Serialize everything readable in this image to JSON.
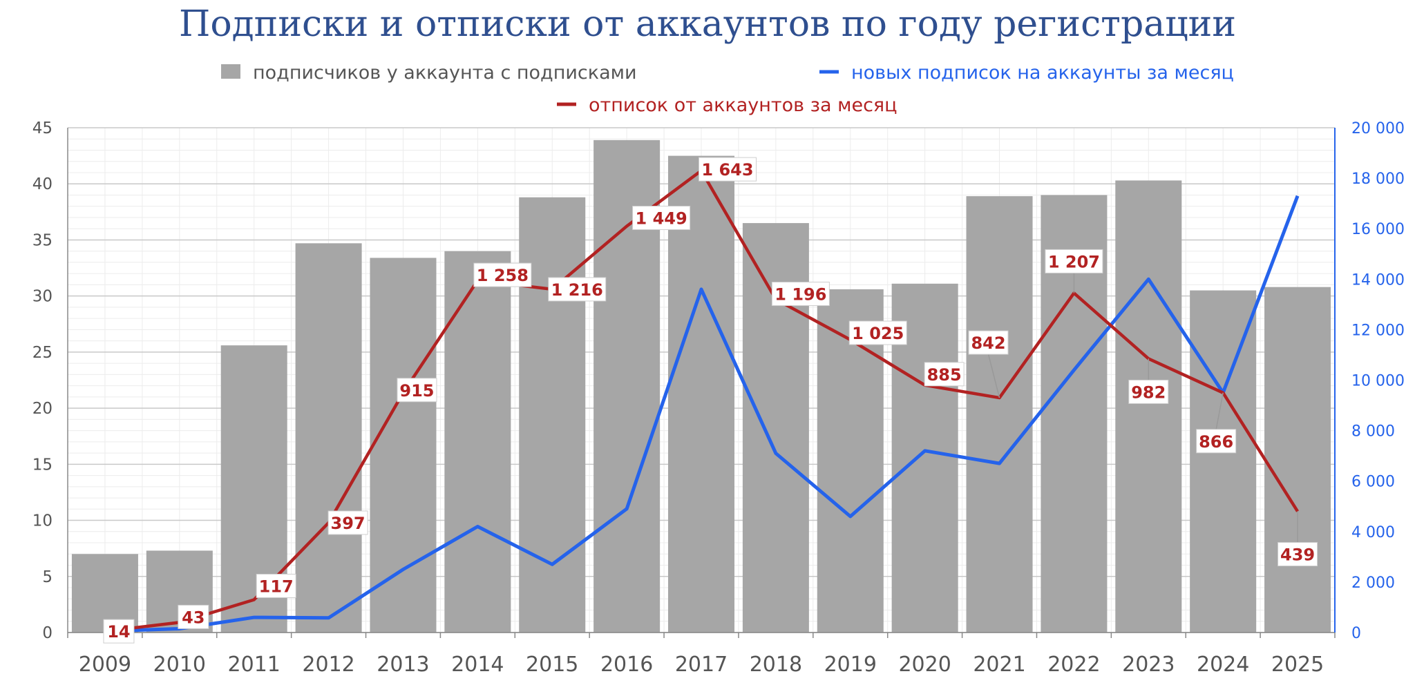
{
  "chart_data": {
    "type": "bar",
    "title": "Подписки и отписки от аккаунтов по году регистрации",
    "categories": [
      "2009",
      "2010",
      "2011",
      "2012",
      "2013",
      "2014",
      "2015",
      "2016",
      "2017",
      "2018",
      "2019",
      "2020",
      "2021",
      "2022",
      "2023",
      "2024",
      "2025"
    ],
    "series": [
      {
        "name": "подписчиков у аккаунта с подписками",
        "type": "bar",
        "axis": "left",
        "color": "#a6a6a6",
        "values": [
          7.0,
          7.3,
          25.6,
          34.7,
          33.4,
          34.0,
          38.8,
          43.9,
          42.5,
          36.5,
          30.6,
          31.1,
          38.9,
          39.0,
          40.3,
          30.5,
          30.8
        ]
      },
      {
        "name": "новых подписок на аккаунты за месяц",
        "type": "line",
        "axis": "right",
        "color": "#2563eb",
        "values": [
          50,
          150,
          600,
          580,
          2500,
          4200,
          2700,
          4900,
          13600,
          7100,
          4600,
          7200,
          6700,
          10400,
          14000,
          9500,
          17300
        ]
      },
      {
        "name": "отписок от аккаунтов за месяц",
        "type": "line",
        "axis": "right",
        "color": "#b22222",
        "values": [
          14,
          43,
          117,
          397,
          915,
          1258,
          1216,
          1449,
          1643,
          1196,
          1025,
          885,
          842,
          1207,
          982,
          866,
          439
        ],
        "labels": [
          "14",
          "43",
          "117",
          "397",
          "915",
          "1 258",
          "1 216",
          "1 449",
          "1 643",
          "1 196",
          "1 025",
          "885",
          "842",
          "1 207",
          "982",
          "866",
          "439"
        ],
        "plot_values": [
          50,
          400,
          1300,
          4350,
          9500,
          13950,
          13600,
          16100,
          18300,
          13200,
          11600,
          9800,
          9300,
          13450,
          10850,
          9500,
          4800
        ]
      }
    ],
    "y_left": {
      "min": 0,
      "max": 45,
      "ticks": [
        "0",
        "5",
        "10",
        "15",
        "20",
        "25",
        "30",
        "35",
        "40",
        "45"
      ]
    },
    "y_right": {
      "min": 0,
      "max": 20000,
      "ticks": [
        "0",
        "2 000",
        "4 000",
        "6 000",
        "8 000",
        "10 000",
        "12 000",
        "14 000",
        "16 000",
        "18 000",
        "20 000"
      ]
    },
    "grid": true,
    "legend_position": "top"
  },
  "legend": {
    "bars": "подписчиков у аккаунта с подписками",
    "blue": "новых подписок на аккаунты за месяц",
    "red": "отписок от аккаунтов за месяц"
  },
  "colors": {
    "bar": "#a6a6a6",
    "blue": "#2563eb",
    "red": "#b22222",
    "title": "#2f4f8f",
    "grid_major": "#c8c8c8",
    "grid_minor": "#ececec"
  }
}
